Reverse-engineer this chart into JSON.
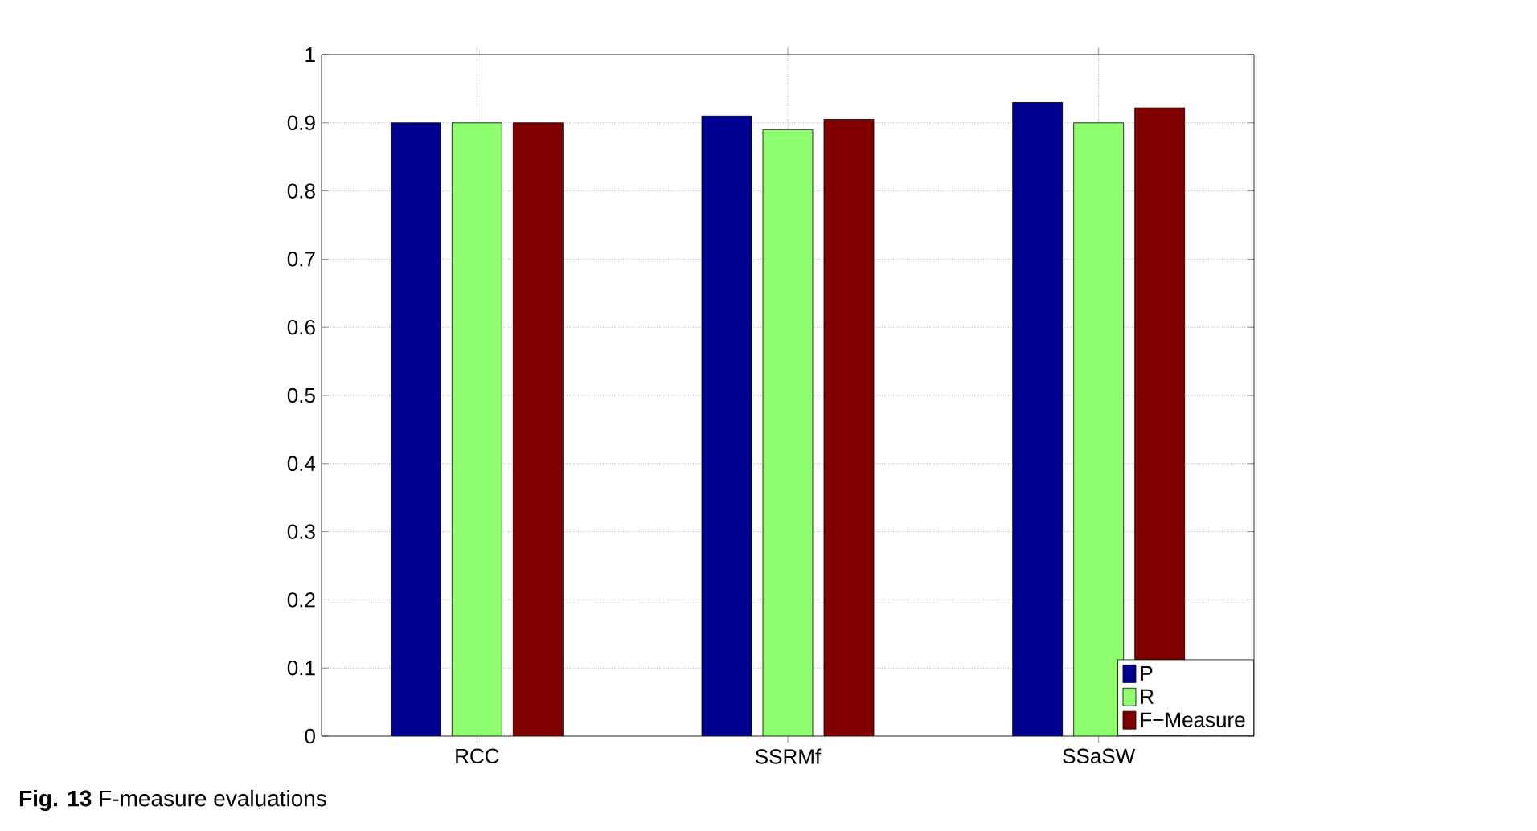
{
  "chart_data": {
    "type": "bar",
    "categories": [
      "RCC",
      "SSRMf",
      "SSaSW"
    ],
    "series": [
      {
        "name": "P",
        "color": "#00008f",
        "values": [
          0.9,
          0.91,
          0.93
        ]
      },
      {
        "name": "R",
        "color": "#8fff70",
        "values": [
          0.9,
          0.89,
          0.9
        ]
      },
      {
        "name": "F−Measure",
        "color": "#800000",
        "values": [
          0.9,
          0.905,
          0.922
        ]
      }
    ],
    "ylim": [
      0,
      1
    ],
    "yticks": [
      0,
      0.1,
      0.2,
      0.3,
      0.4,
      0.5,
      0.6,
      0.7,
      0.8,
      0.9,
      1
    ],
    "grid": true,
    "legend": "bottom right",
    "annotations": [
      "**Fig. 13** F-measure evaluations"
    ]
  }
}
